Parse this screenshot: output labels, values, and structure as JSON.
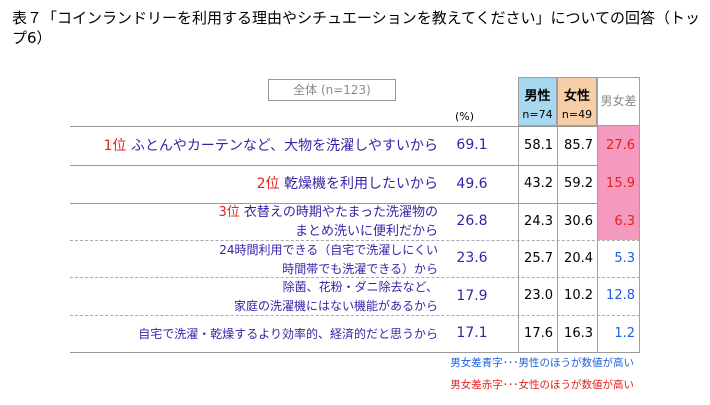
{
  "title": "表７「コインランドリーを利用する理由やシチュエーションを教えてください」についての回答（トップ6）",
  "header": {
    "total": "全体 (n=123)",
    "unit": "(%)",
    "male": "男性",
    "male_n": "n=74",
    "female": "女性",
    "female_n": "n=49",
    "diff": "男女差"
  },
  "notes": {
    "blue": "男女差青字･･･男性のほうが数値が高い",
    "red": "男女差赤字･･･女性のほうが数値が高い"
  },
  "colors": {
    "female_higher": "#e8201a",
    "male_higher": "#2060e0",
    "highlight": "#f59abf",
    "label": "#3a1fa6"
  },
  "chart_data": {
    "type": "table",
    "columns": [
      "全体 (n=123)",
      "男性 n=74",
      "女性 n=49",
      "男女差"
    ],
    "rows": [
      {
        "rank": "1位",
        "label": "ふとんやカーテンなど、大物を洗濯しやすいから",
        "label2": "",
        "total": "69.1",
        "male": "58.1",
        "female": "85.7",
        "diff": "27.6",
        "higher": "female"
      },
      {
        "rank": "2位",
        "label": "乾燥機を利用したいから",
        "label2": "",
        "total": "49.6",
        "male": "43.2",
        "female": "59.2",
        "diff": "15.9",
        "higher": "female"
      },
      {
        "rank": "3位",
        "label": "衣替えの時期やたまった洗濯物の",
        "label2": "まとめ洗いに便利だから",
        "total": "26.8",
        "male": "24.3",
        "female": "30.6",
        "diff": "6.3",
        "higher": "female"
      },
      {
        "rank": "",
        "label": "24時間利用できる（自宅で洗濯しにくい",
        "label2": "時間帯でも洗濯できる）から",
        "total": "23.6",
        "male": "25.7",
        "female": "20.4",
        "diff": "5.3",
        "higher": "male"
      },
      {
        "rank": "",
        "label": "除菌、花粉・ダニ除去など、",
        "label2": "家庭の洗濯機にはない機能があるから",
        "total": "17.9",
        "male": "23.0",
        "female": "10.2",
        "diff": "12.8",
        "higher": "male"
      },
      {
        "rank": "",
        "label": "自宅で洗濯・乾燥するより効率的、経済的だと思うから",
        "label2": "",
        "total": "17.1",
        "male": "17.6",
        "female": "16.3",
        "diff": "1.2",
        "higher": "male"
      }
    ]
  }
}
